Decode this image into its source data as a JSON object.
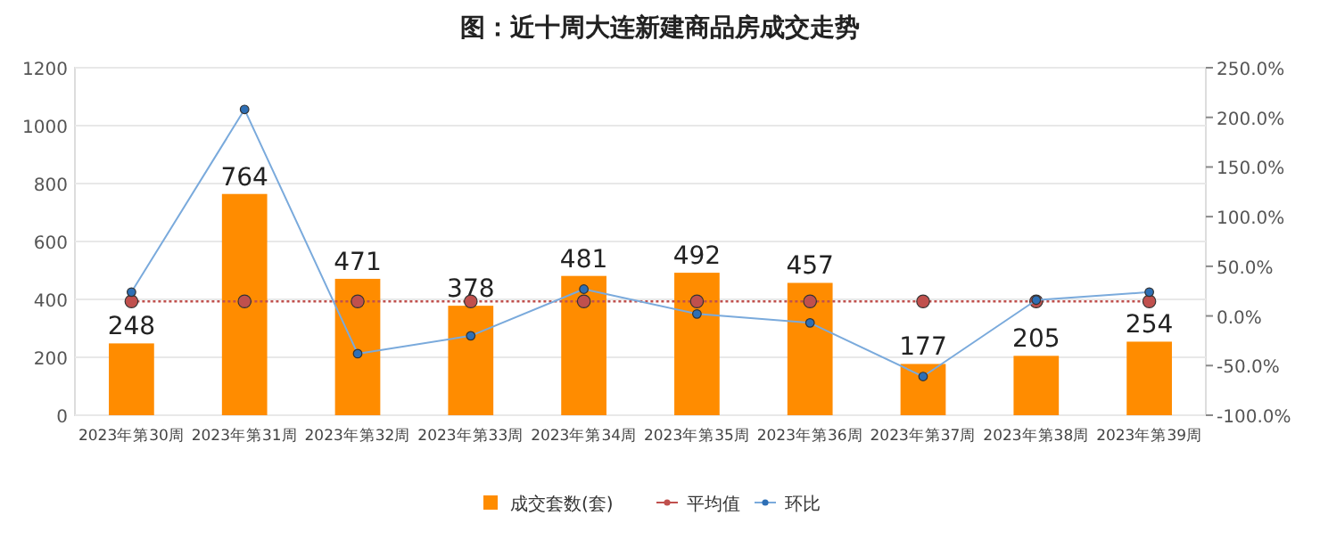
{
  "chart_data": {
    "type": "bar",
    "title": "图：近十周大连新建商品房成交走势",
    "categories": [
      "2023年第30周",
      "2023年第31周",
      "2023年第32周",
      "2023年第33周",
      "2023年第34周",
      "2023年第35周",
      "2023年第36周",
      "2023年第37周",
      "2023年第38周",
      "2023年第39周"
    ],
    "series": [
      {
        "name": "成交套数(套)",
        "color": "#ff8c00",
        "values": [
          248,
          764,
          471,
          378,
          481,
          492,
          457,
          177,
          205,
          254
        ],
        "value_labels": [
          "248",
          "764",
          "471",
          "378",
          "481",
          "492",
          "457",
          "177",
          "205",
          "254"
        ]
      },
      {
        "name": "平均值",
        "type": "line",
        "color": "#c0504d",
        "line_style": "dotted",
        "marker": "circle",
        "values": [
          393,
          393,
          393,
          393,
          393,
          393,
          393,
          393,
          393,
          393
        ]
      },
      {
        "name": "环比",
        "type": "line",
        "axis": "y2",
        "color": "#7aaadc",
        "line_style": "solid",
        "marker": "circle",
        "values": [
          24,
          208,
          -38,
          -20,
          27,
          2,
          -7,
          -61,
          16,
          24
        ]
      }
    ],
    "ylim": [
      0,
      1200
    ],
    "yticks": [
      0,
      200,
      400,
      600,
      800,
      1000,
      1200
    ],
    "y2lim": [
      -100,
      250
    ],
    "y2ticks": [
      {
        "value": -100,
        "label": "-100.0%"
      },
      {
        "value": -50,
        "label": "-50.0%"
      },
      {
        "value": 0,
        "label": "0.0%"
      },
      {
        "value": 50,
        "label": "50.0%"
      },
      {
        "value": 100,
        "label": "100.0%"
      },
      {
        "value": 150,
        "label": "150.0%"
      },
      {
        "value": 200,
        "label": "200.0%"
      },
      {
        "value": 250,
        "label": "250.0%"
      }
    ],
    "grid": "y",
    "legend": "bottom"
  }
}
